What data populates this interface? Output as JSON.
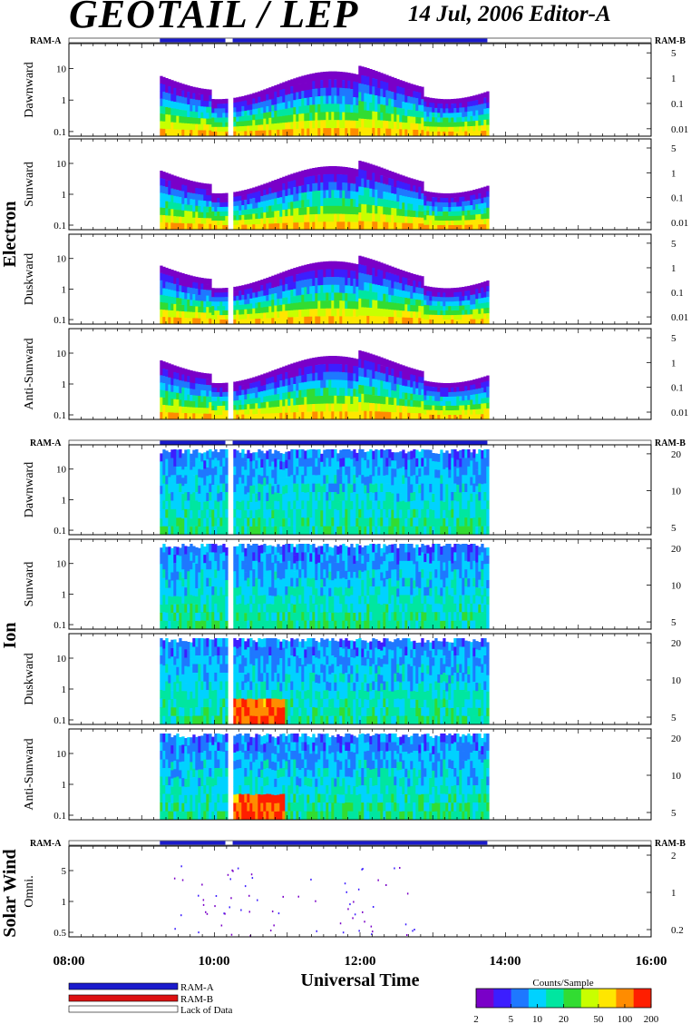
{
  "title": "GEOTAIL / LEP",
  "subtitle": "14 Jul, 2006   Editor-A",
  "colors": {
    "ram_a": "#1a1acc",
    "ram_b": "#dd1111",
    "spectrum": [
      "#7a00c8",
      "#3c1eff",
      "#1e78ff",
      "#00d2ff",
      "#00e6a0",
      "#32dc32",
      "#c8ff00",
      "#ffe600",
      "#ff8c00",
      "#ff1e00"
    ]
  },
  "ram_labels": {
    "left": "RAM-A",
    "right": "RAM-B"
  },
  "groups": [
    {
      "label": "Electron"
    },
    {
      "label": "Ion"
    },
    {
      "label": "Solar Wind"
    }
  ],
  "panels": [
    {
      "label": "Dawnward",
      "left_ticks": [
        "10",
        "1",
        "0.1"
      ],
      "right_ticks": [
        "5",
        "1",
        "0.1",
        "0.01"
      ]
    },
    {
      "label": "Sunward",
      "left_ticks": [
        "10",
        "1",
        "0.1"
      ],
      "right_ticks": [
        "5",
        "1",
        "0.1",
        "0.01"
      ]
    },
    {
      "label": "Duskward",
      "left_ticks": [
        "10",
        "1",
        "0.1"
      ],
      "right_ticks": [
        "5",
        "1",
        "0.1",
        "0.01"
      ]
    },
    {
      "label": "Anti-Sunward",
      "left_ticks": [
        "10",
        "1",
        "0.1"
      ],
      "right_ticks": [
        "5",
        "1",
        "0.1",
        "0.01"
      ]
    },
    {
      "label": "Dawnward",
      "left_ticks": [
        "10",
        "1",
        "0.1"
      ],
      "right_ticks": [
        "20",
        "10",
        "5"
      ]
    },
    {
      "label": "Sunward",
      "left_ticks": [
        "10",
        "1",
        "0.1"
      ],
      "right_ticks": [
        "20",
        "10",
        "5"
      ]
    },
    {
      "label": "Duskward",
      "left_ticks": [
        "10",
        "1",
        "0.1"
      ],
      "right_ticks": [
        "20",
        "10",
        "5"
      ]
    },
    {
      "label": "Anti-Sunward",
      "left_ticks": [
        "10",
        "1",
        "0.1"
      ],
      "right_ticks": [
        "20",
        "10",
        "5"
      ]
    },
    {
      "label": "Omni.",
      "left_ticks": [
        "5",
        "1",
        "0.5"
      ],
      "right_ticks": [
        "2",
        "1",
        "0.2"
      ]
    }
  ],
  "chart_data": {
    "type": "heatmap",
    "xlabel": "Universal Time",
    "x_ticks": [
      "08:00",
      "10:00",
      "12:00",
      "14:00",
      "16:00"
    ],
    "x_range_hours": [
      8,
      16
    ],
    "data_coverage_hours": [
      9.25,
      13.75
    ],
    "data_gaps_hours": [
      [
        10.15,
        10.25
      ]
    ],
    "colorbar": {
      "title": "Counts/Sample",
      "ticks": [
        "2",
        "5",
        "10",
        "20",
        "50",
        "100",
        "200"
      ],
      "scale": "log"
    },
    "legend": [
      {
        "label": "RAM-A",
        "color": "#1a1acc"
      },
      {
        "label": "RAM-B",
        "color": "#dd1111"
      },
      {
        "label": "Lack of Data",
        "color": "#ffffff"
      }
    ]
  }
}
